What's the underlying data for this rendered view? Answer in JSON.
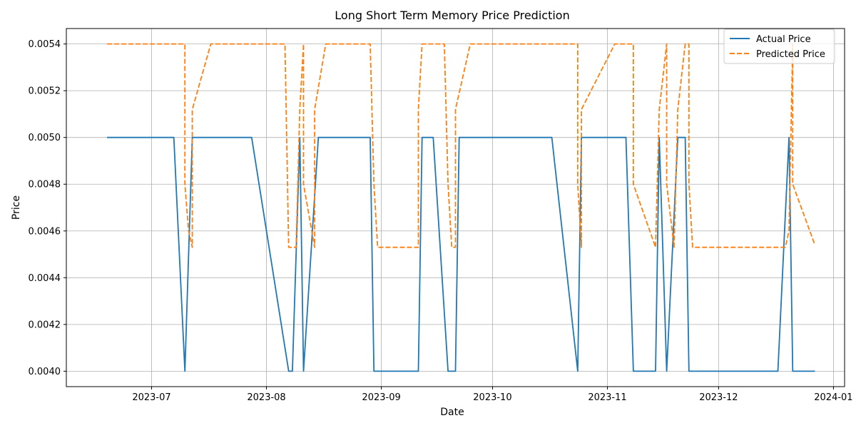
{
  "chart_data": {
    "type": "line",
    "title": "Long Short Term Memory Price Prediction",
    "xlabel": "Date",
    "ylabel": "Price",
    "x_ticks": [
      "2023-07-01",
      "2023-08-01",
      "2023-09-01",
      "2023-10-01",
      "2023-11-01",
      "2023-12-01",
      "2024-01-01"
    ],
    "x_tick_labels": [
      "2023-07",
      "2023-08",
      "2023-09",
      "2023-10",
      "2023-11",
      "2023-12",
      "2024-01"
    ],
    "xlim": [
      "2023-06-08",
      "2024-01-04"
    ],
    "y_ticks": [
      0.004,
      0.0042,
      0.0044,
      0.0046,
      0.0048,
      0.005,
      0.0052,
      0.0054
    ],
    "y_tick_labels": [
      "0.0040",
      "0.0042",
      "0.0044",
      "0.0046",
      "0.0048",
      "0.0050",
      "0.0052",
      "0.0054"
    ],
    "ylim": [
      0.003934,
      0.005466
    ],
    "grid": true,
    "legend_position": "top-right",
    "series": [
      {
        "name": "Actual Price",
        "color": "#1f77b4",
        "style": "solid",
        "points": [
          [
            "2023-06-19",
            0.005
          ],
          [
            "2023-07-07",
            0.005
          ],
          [
            "2023-07-10",
            0.004
          ],
          [
            "2023-07-12",
            0.005
          ],
          [
            "2023-07-28",
            0.005
          ],
          [
            "2023-08-07",
            0.004
          ],
          [
            "2023-08-08",
            0.004
          ],
          [
            "2023-08-10",
            0.005
          ],
          [
            "2023-08-11",
            0.004
          ],
          [
            "2023-08-15",
            0.005
          ],
          [
            "2023-08-29",
            0.005
          ],
          [
            "2023-08-30",
            0.004
          ],
          [
            "2023-09-11",
            0.004
          ],
          [
            "2023-09-12",
            0.005
          ],
          [
            "2023-09-15",
            0.005
          ],
          [
            "2023-09-19",
            0.004
          ],
          [
            "2023-09-21",
            0.004
          ],
          [
            "2023-09-22",
            0.005
          ],
          [
            "2023-10-17",
            0.005
          ],
          [
            "2023-10-24",
            0.004
          ],
          [
            "2023-10-25",
            0.005
          ],
          [
            "2023-11-06",
            0.005
          ],
          [
            "2023-11-08",
            0.004
          ],
          [
            "2023-11-14",
            0.004
          ],
          [
            "2023-11-15",
            0.005
          ],
          [
            "2023-11-17",
            0.004
          ],
          [
            "2023-11-20",
            0.005
          ],
          [
            "2023-11-22",
            0.005
          ],
          [
            "2023-11-23",
            0.004
          ],
          [
            "2023-12-17",
            0.004
          ],
          [
            "2023-12-20",
            0.005
          ],
          [
            "2023-12-21",
            0.004
          ],
          [
            "2023-12-27",
            0.004
          ]
        ]
      },
      {
        "name": "Predicted Price",
        "color": "#ff7f0e",
        "style": "dashed",
        "points": [
          [
            "2023-06-19",
            0.0054
          ],
          [
            "2023-07-10",
            0.0054
          ],
          [
            "2023-07-10",
            0.0048
          ],
          [
            "2023-07-11",
            0.0046
          ],
          [
            "2023-07-12",
            0.00453
          ],
          [
            "2023-07-12",
            0.00512
          ],
          [
            "2023-07-17",
            0.0054
          ],
          [
            "2023-08-06",
            0.0054
          ],
          [
            "2023-08-07",
            0.00453
          ],
          [
            "2023-08-09",
            0.00453
          ],
          [
            "2023-08-10",
            0.00512
          ],
          [
            "2023-08-11",
            0.0054
          ],
          [
            "2023-08-11",
            0.0048
          ],
          [
            "2023-08-14",
            0.00453
          ],
          [
            "2023-08-14",
            0.00512
          ],
          [
            "2023-08-17",
            0.0054
          ],
          [
            "2023-08-29",
            0.0054
          ],
          [
            "2023-08-30",
            0.0048
          ],
          [
            "2023-08-31",
            0.00453
          ],
          [
            "2023-09-11",
            0.00453
          ],
          [
            "2023-09-11",
            0.00512
          ],
          [
            "2023-09-12",
            0.0054
          ],
          [
            "2023-09-18",
            0.0054
          ],
          [
            "2023-09-19",
            0.0048
          ],
          [
            "2023-09-20",
            0.00453
          ],
          [
            "2023-09-21",
            0.00453
          ],
          [
            "2023-09-21",
            0.00512
          ],
          [
            "2023-09-25",
            0.0054
          ],
          [
            "2023-10-24",
            0.0054
          ],
          [
            "2023-10-24",
            0.0048
          ],
          [
            "2023-10-25",
            0.00453
          ],
          [
            "2023-10-25",
            0.00512
          ],
          [
            "2023-11-03",
            0.0054
          ],
          [
            "2023-11-08",
            0.0054
          ],
          [
            "2023-11-08",
            0.0048
          ],
          [
            "2023-11-14",
            0.00453
          ],
          [
            "2023-11-15",
            0.00512
          ],
          [
            "2023-11-17",
            0.0054
          ],
          [
            "2023-11-17",
            0.0048
          ],
          [
            "2023-11-19",
            0.00453
          ],
          [
            "2023-11-20",
            0.00512
          ],
          [
            "2023-11-22",
            0.0054
          ],
          [
            "2023-11-23",
            0.0054
          ],
          [
            "2023-11-23",
            0.0048
          ],
          [
            "2023-11-24",
            0.00453
          ],
          [
            "2023-12-19",
            0.00453
          ],
          [
            "2023-12-20",
            0.0046
          ],
          [
            "2023-12-21",
            0.0054
          ],
          [
            "2023-12-21",
            0.0048
          ],
          [
            "2023-12-27",
            0.00454
          ]
        ]
      }
    ]
  }
}
